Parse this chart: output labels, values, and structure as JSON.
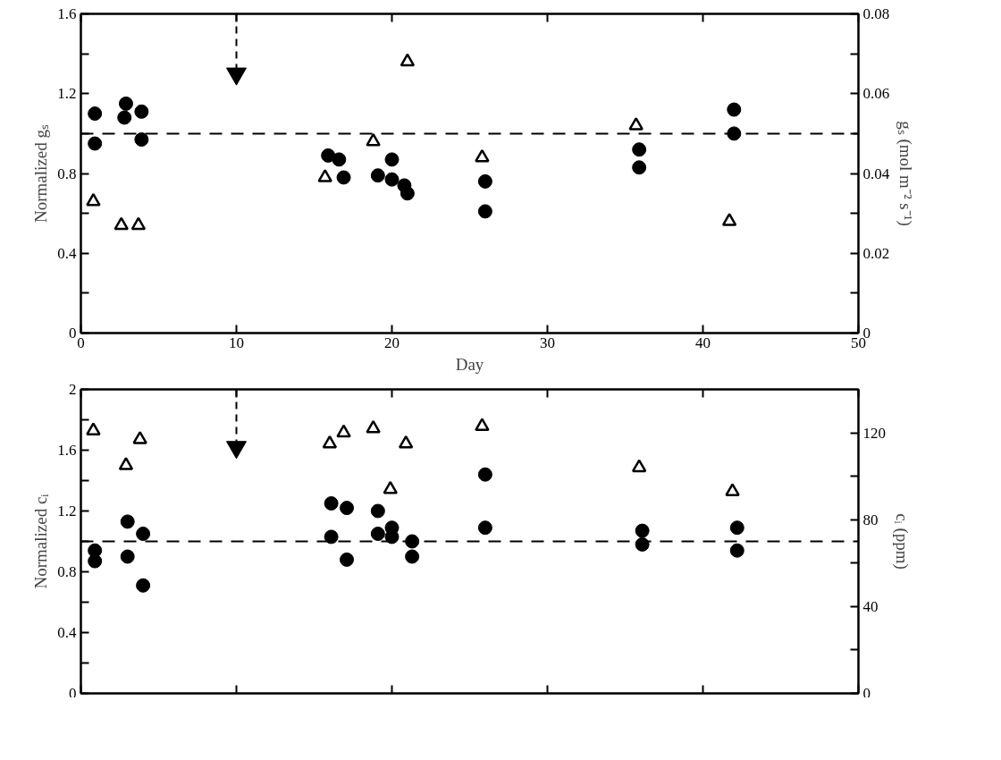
{
  "chart_data": [
    {
      "type": "scatter",
      "xlabel": "Day",
      "ylabel": "Normalized gₛ",
      "y2label": "gₛ (mol m⁻² s⁻¹)",
      "xlim": [
        0,
        50
      ],
      "xticks": [
        0,
        10,
        20,
        30,
        40,
        50
      ],
      "ylim": [
        0,
        1.6
      ],
      "yticks": [
        0,
        {
          "value": 0.2,
          "label": null
        },
        0.4,
        {
          "value": 0.6,
          "label": null
        },
        0.8,
        {
          "value": 1.0,
          "label": null
        },
        1.2,
        {
          "value": 1.4,
          "label": null
        },
        1.6
      ],
      "y2lim": [
        0,
        0.08
      ],
      "y2ticks": [
        0,
        {
          "value": 0.01,
          "label": null
        },
        0.02,
        {
          "value": 0.03,
          "label": null
        },
        0.04,
        {
          "value": 0.05,
          "label": null
        },
        0.06,
        {
          "value": 0.07,
          "label": null
        },
        0.08
      ],
      "grid": false,
      "series": [
        {
          "color": "#000000",
          "marker": "circle",
          "axis": "y",
          "x": [
            0.9,
            0.9,
            3.9,
            2.8,
            2.9,
            3.9,
            15.9,
            16.6,
            16.9,
            19.1,
            20.0,
            20.0,
            20.8,
            21.0,
            26.0,
            26.0,
            35.9,
            35.9,
            42.0,
            42.0
          ],
          "values": [
            0.95,
            1.1,
            0.97,
            1.08,
            1.15,
            1.11,
            0.89,
            0.87,
            0.78,
            0.79,
            0.87,
            0.77,
            0.74,
            0.7,
            0.61,
            0.76,
            0.83,
            0.92,
            1.0,
            1.12
          ]
        },
        {
          "color": "#000000",
          "marker": "triangle",
          "axis": "y2",
          "x": [
            0.8,
            2.6,
            3.7,
            15.7,
            18.8,
            21.0,
            25.8,
            35.7,
            41.7
          ],
          "values": [
            0.033,
            0.027,
            0.027,
            0.039,
            0.048,
            0.068,
            0.044,
            0.052,
            0.028
          ]
        },
        {
          "type": "scatter",
          "marker": "triangle",
          "color": "#000000",
          "axis": "y",
          "x": [
            10
          ],
          "values": [
            1.3
          ]
        }
      ],
      "ref_lines": [
        {
          "axis": "y",
          "value": 1.0,
          "line_style": "dashed"
        },
        {
          "axis": "x",
          "value": 10,
          "line_style": "dashed"
        }
      ]
    },
    {
      "type": "scatter",
      "ylabel": "Normalized cᵢ",
      "y2label": "cᵢ (ppm)",
      "tick_labels": "y",
      "xlim": [
        0,
        50
      ],
      "xticks": [
        0,
        10,
        20,
        30,
        40,
        50
      ],
      "ylim": [
        0,
        2
      ],
      "yticks": [
        0,
        {
          "value": 0.2,
          "label": null
        },
        0.4,
        {
          "value": 0.6,
          "label": null
        },
        0.8,
        {
          "value": 1.0,
          "label": null
        },
        1.2,
        {
          "value": 1.4,
          "label": null
        },
        1.6,
        {
          "value": 1.8,
          "label": null
        },
        2
      ],
      "y2lim": [
        0,
        140
      ],
      "y2ticks": [
        0,
        {
          "value": 20,
          "label": null
        },
        40,
        {
          "value": 60,
          "label": null
        },
        80,
        {
          "value": 100,
          "label": null
        },
        120
      ],
      "grid": false,
      "series": [
        {
          "color": "#000000",
          "marker": "circle",
          "axis": "y",
          "x": [
            0.9,
            0.9,
            3.0,
            3.0,
            4.0,
            4.0,
            16.1,
            16.1,
            17.1,
            17.1,
            19.1,
            19.1,
            20.0,
            20.0,
            21.3,
            21.3,
            26.0,
            26.0,
            36.1,
            36.1,
            42.2,
            42.2
          ],
          "values": [
            0.87,
            0.94,
            0.9,
            1.13,
            1.05,
            0.71,
            1.03,
            1.25,
            1.22,
            0.88,
            1.2,
            1.05,
            1.09,
            1.03,
            0.9,
            1.0,
            1.09,
            1.44,
            0.98,
            1.07,
            0.94,
            1.09
          ]
        },
        {
          "color": "#000000",
          "marker": "triangle",
          "axis": "y2",
          "x": [
            0.8,
            2.9,
            3.8,
            16.0,
            16.9,
            18.8,
            19.9,
            20.9,
            25.8,
            35.9,
            41.9
          ],
          "values": [
            121,
            105,
            117,
            115,
            120,
            122,
            94,
            115,
            123,
            104,
            93
          ]
        },
        {
          "type": "scatter",
          "marker": "triangle",
          "color": "#000000",
          "axis": "y",
          "x": [
            10
          ],
          "values": [
            1.62
          ]
        }
      ],
      "ref_lines": [
        {
          "axis": "y",
          "value": 1.0,
          "line_style": "dashed"
        },
        {
          "axis": "x",
          "value": 10,
          "line_style": "dashed"
        }
      ]
    }
  ]
}
